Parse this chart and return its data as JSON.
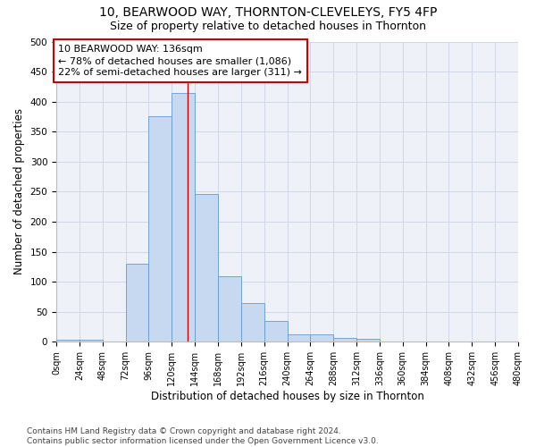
{
  "title_line1": "10, BEARWOOD WAY, THORNTON-CLEVELEYS, FY5 4FP",
  "title_line2": "Size of property relative to detached houses in Thornton",
  "xlabel": "Distribution of detached houses by size in Thornton",
  "ylabel": "Number of detached properties",
  "bar_values": [
    3,
    3,
    0,
    130,
    375,
    415,
    247,
    110,
    65,
    35,
    13,
    13,
    7,
    5,
    1,
    0,
    0,
    0,
    0,
    0
  ],
  "bin_edges": [
    0,
    24,
    48,
    72,
    96,
    120,
    144,
    168,
    192,
    216,
    240,
    264,
    288,
    312,
    336,
    360,
    384,
    408,
    432,
    456,
    480
  ],
  "tick_labels": [
    "0sqm",
    "24sqm",
    "48sqm",
    "72sqm",
    "96sqm",
    "120sqm",
    "144sqm",
    "168sqm",
    "192sqm",
    "216sqm",
    "240sqm",
    "264sqm",
    "288sqm",
    "312sqm",
    "336sqm",
    "360sqm",
    "384sqm",
    "408sqm",
    "432sqm",
    "456sqm",
    "480sqm"
  ],
  "bar_color": "#c6d9f0",
  "bar_edge_color": "#6699cc",
  "vline_color": "#cc0000",
  "vline_x": 136,
  "annotation_text": "10 BEARWOOD WAY: 136sqm\n← 78% of detached houses are smaller (1,086)\n22% of semi-detached houses are larger (311) →",
  "annotation_box_color": "#ffffff",
  "annotation_box_edge_color": "#cc0000",
  "annotation_fontsize": 8,
  "ylim": [
    0,
    500
  ],
  "yticks": [
    0,
    50,
    100,
    150,
    200,
    250,
    300,
    350,
    400,
    450,
    500
  ],
  "grid_color": "#d0d8e8",
  "bg_color": "#eef2f8",
  "title1_fontsize": 10,
  "title2_fontsize": 9,
  "xlabel_fontsize": 8.5,
  "ylabel_fontsize": 8.5,
  "tick_fontsize": 7,
  "footnote": "Contains HM Land Registry data © Crown copyright and database right 2024.\nContains public sector information licensed under the Open Government Licence v3.0.",
  "footnote_fontsize": 6.5
}
